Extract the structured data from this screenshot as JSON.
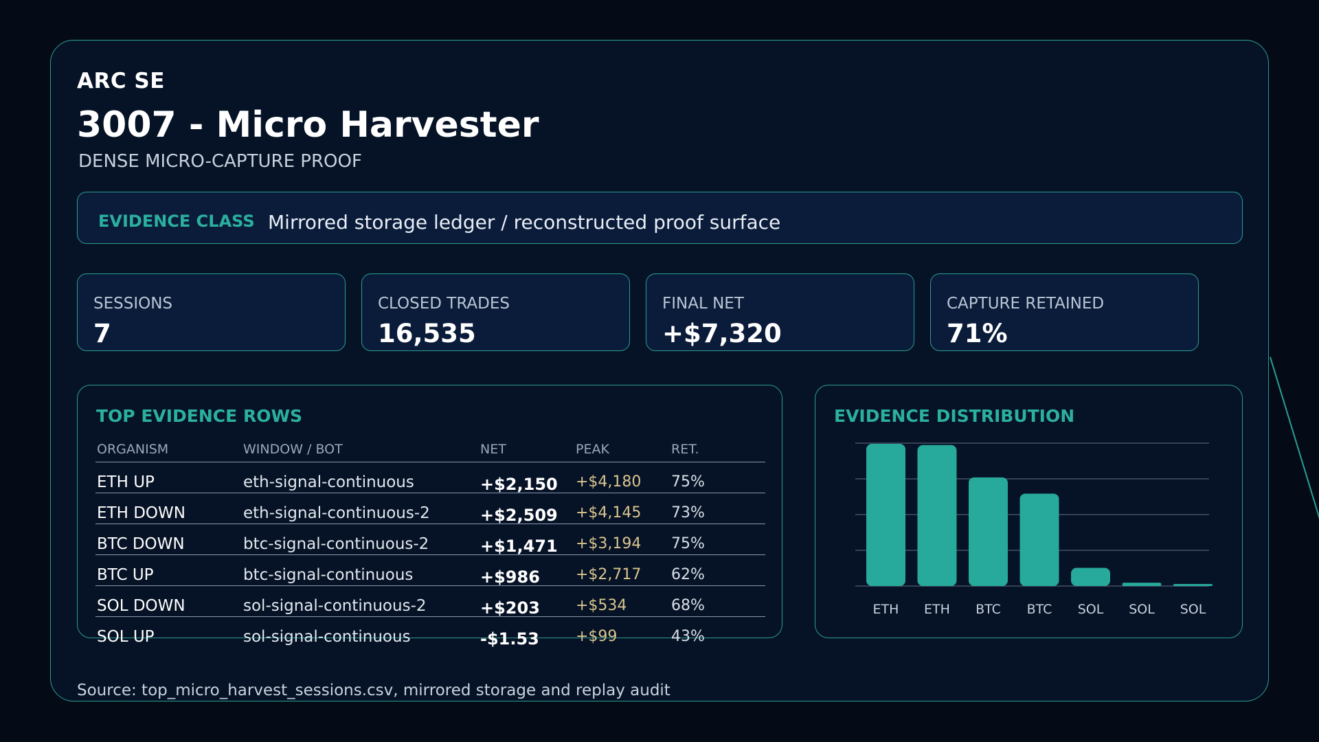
{
  "header": {
    "brand": "ARC SE",
    "title": "3007 - Micro Harvester",
    "subtitle": "DENSE MICRO-CAPTURE PROOF"
  },
  "evidence": {
    "label": "EVIDENCE CLASS",
    "value": "Mirrored storage ledger / reconstructed proof surface"
  },
  "stats": [
    {
      "label": "SESSIONS",
      "value": "7"
    },
    {
      "label": "CLOSED TRADES",
      "value": "16,535"
    },
    {
      "label": "FINAL NET",
      "value": "+$7,320"
    },
    {
      "label": "CAPTURE RETAINED",
      "value": "71%"
    }
  ],
  "table": {
    "title": "TOP EVIDENCE ROWS",
    "columns": [
      "ORGANISM",
      "WINDOW / BOT",
      "NET",
      "PEAK",
      "RET."
    ],
    "rows": [
      {
        "organism": "ETH UP",
        "window": "eth-signal-continuous",
        "net": "+$2,150",
        "peak": "+$4,180",
        "ret": "75%"
      },
      {
        "organism": "ETH DOWN",
        "window": "eth-signal-continuous-2",
        "net": "+$2,509",
        "peak": "+$4,145",
        "ret": "73%"
      },
      {
        "organism": "BTC DOWN",
        "window": "btc-signal-continuous-2",
        "net": "+$1,471",
        "peak": "+$3,194",
        "ret": "75%"
      },
      {
        "organism": "BTC UP",
        "window": "btc-signal-continuous",
        "net": "+$986",
        "peak": "+$2,717",
        "ret": "62%"
      },
      {
        "organism": "SOL DOWN",
        "window": "sol-signal-continuous-2",
        "net": "+$203",
        "peak": "+$534",
        "ret": "68%"
      },
      {
        "organism": "SOL UP",
        "window": "sol-signal-continuous",
        "net": "-$1.53",
        "peak": "+$99",
        "ret": "43%"
      }
    ]
  },
  "chart_data": {
    "type": "bar",
    "title": "EVIDENCE DISTRIBUTION",
    "categories": [
      "ETH",
      "ETH",
      "BTC",
      "BTC",
      "SOL",
      "SOL",
      "SOL"
    ],
    "values": [
      4180,
      4145,
      3194,
      2717,
      534,
      99,
      10
    ],
    "ylim": [
      0,
      4200
    ],
    "grid": true,
    "bar_color": "#27a99b",
    "grid_color": "#8a98b0"
  },
  "footer": {
    "source": "Source: top_micro_harvest_sessions.csv, mirrored storage and replay audit"
  },
  "colors": {
    "accent": "#2bb09f",
    "border": "#2b9f93",
    "peak": "#d9c58f"
  }
}
